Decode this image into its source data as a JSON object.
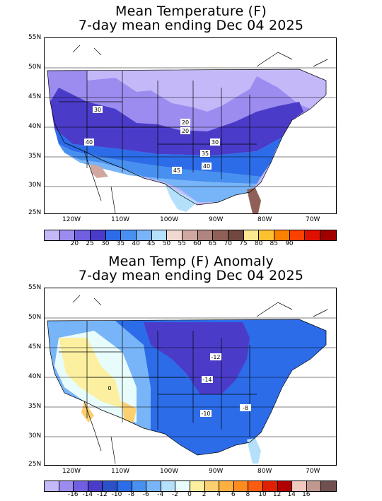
{
  "maps": [
    {
      "title_line1": "Mean Temperature (F)",
      "title_line2": "7-day mean ending Dec 04 2025",
      "lat_labels": [
        "55N",
        "50N",
        "45N",
        "40N",
        "35N",
        "30N",
        "25N"
      ],
      "lon_labels": [
        "120W",
        "110W",
        "100W",
        "90W",
        "80W",
        "70W"
      ],
      "colorbar": {
        "colors": [
          "#c4b8f8",
          "#9c8cf0",
          "#7060e0",
          "#4a3cc8",
          "#2c6ce8",
          "#4890f0",
          "#78b4f8",
          "#b4e0fc",
          "#f0d8d0",
          "#d0a8a0",
          "#b08480",
          "#906058",
          "#704840",
          "#fce890",
          "#fcc030",
          "#fc8000",
          "#fc4000",
          "#e01000",
          "#a00000"
        ],
        "labels": [
          "20",
          "25",
          "30",
          "35",
          "40",
          "45",
          "50",
          "55",
          "60",
          "65",
          "70",
          "75",
          "80",
          "85",
          "90"
        ]
      },
      "contour_labels": [
        "30",
        "20",
        "20",
        "30",
        "40",
        "35",
        "40",
        "45"
      ]
    },
    {
      "title_line1": "Mean Temp (F) Anomaly",
      "title_line2": "7-day mean ending Dec 04 2025",
      "lat_labels": [
        "55N",
        "50N",
        "45N",
        "40N",
        "35N",
        "30N",
        "25N"
      ],
      "lon_labels": [
        "120W",
        "110W",
        "100W",
        "90W",
        "80W",
        "70W"
      ],
      "colorbar": {
        "colors": [
          "#c4b8f8",
          "#9c8cf0",
          "#7060e0",
          "#4a3cc8",
          "#2c50c8",
          "#2c6ce8",
          "#4890f0",
          "#78b4f8",
          "#b4e0fc",
          "#e8fcfc",
          "#fcf0a0",
          "#fcd070",
          "#fcb040",
          "#fc8c20",
          "#fc5c10",
          "#e02000",
          "#b00000",
          "#f0c8c0",
          "#c09890",
          "#705050"
        ],
        "labels": [
          "-16",
          "-14",
          "-12",
          "-10",
          "-8",
          "-6",
          "-4",
          "-2",
          "0",
          "2",
          "4",
          "6",
          "8",
          "10",
          "12",
          "14",
          "16"
        ]
      },
      "contour_labels": [
        "-12",
        "-14",
        "-8",
        "-10",
        "0"
      ]
    }
  ]
}
